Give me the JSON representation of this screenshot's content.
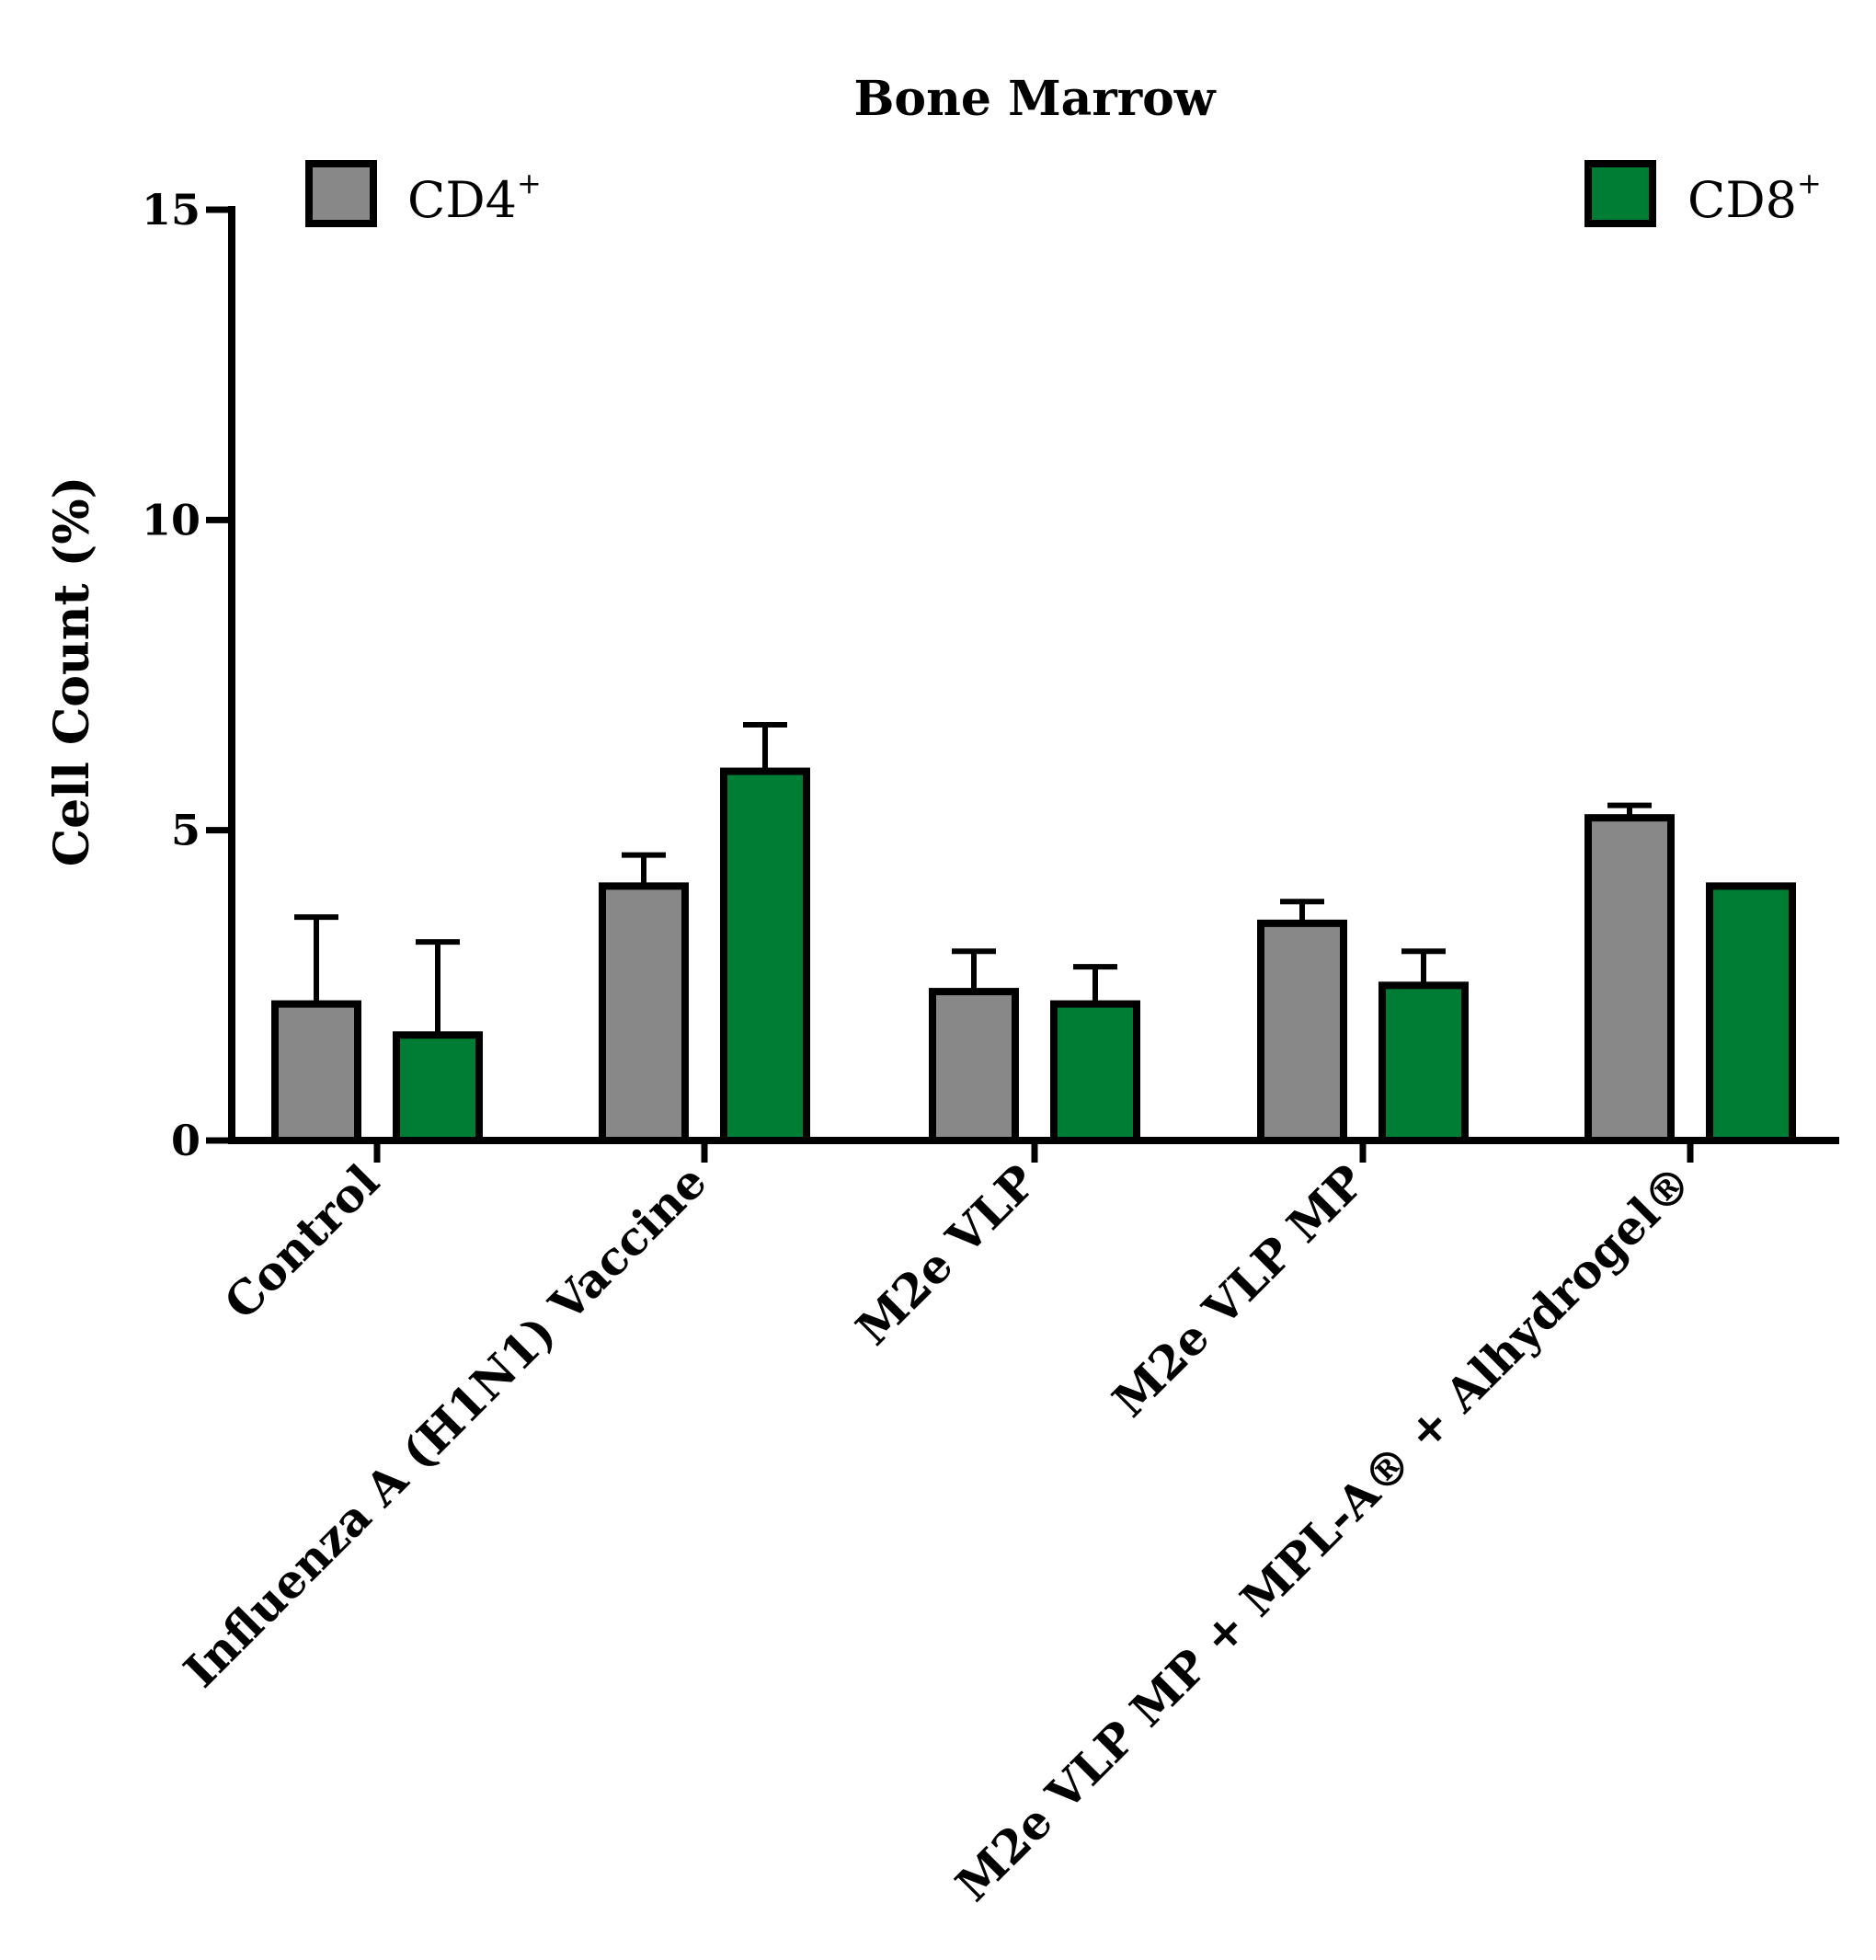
{
  "chart_data": {
    "type": "bar",
    "title": "Bone Marrow",
    "xlabel": "",
    "ylabel": "Cell Count (%)",
    "ylim": [
      0,
      15
    ],
    "yticks": [
      "0",
      "5",
      "10",
      "15"
    ],
    "categories": [
      "Control",
      "Influenza A (H1N1) Vaccine",
      "M2e VLP",
      "M2e VLP MP",
      "M2e VLP MP + MPL-A® + Alhydrogel®"
    ],
    "series": [
      {
        "name": "CD4",
        "name_sup": "+",
        "color": "#888888",
        "values": [
          2.2,
          4.1,
          2.4,
          3.5,
          5.2
        ],
        "errors": [
          1.4,
          0.5,
          0.65,
          0.35,
          0.2
        ]
      },
      {
        "name": "CD8",
        "name_sup": "+",
        "color": "#007d35",
        "values": [
          1.7,
          5.95,
          2.2,
          2.5,
          4.1
        ],
        "errors": [
          1.5,
          0.75,
          0.6,
          0.55,
          0.0
        ]
      }
    ],
    "legend": "top",
    "grid": false
  }
}
